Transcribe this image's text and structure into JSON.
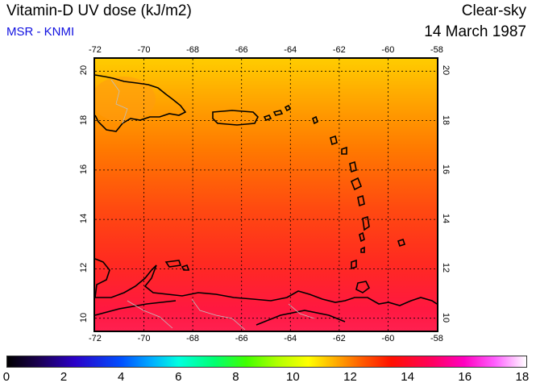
{
  "header": {
    "title": "Vitamin-D UV dose (kJ/m2)",
    "subtitle": "MSR - KNMI",
    "sky": "Clear-sky",
    "date": "14 March 1987"
  },
  "map": {
    "lon_ticks": [
      "-72",
      "-70",
      "-68",
      "-66",
      "-64",
      "-62",
      "-60",
      "-58"
    ],
    "lat_ticks": [
      "20",
      "18",
      "16",
      "14",
      "12",
      "10"
    ],
    "lon_range": [
      -72,
      -58
    ],
    "lat_range": [
      9.5,
      20.5
    ],
    "field_colors": {
      "north": "#ffcc00",
      "middle": "#ff6000",
      "south": "#ff2050"
    }
  },
  "colorbar": {
    "labels": [
      "0",
      "2",
      "4",
      "6",
      "8",
      "10",
      "12",
      "14",
      "16",
      "18"
    ],
    "range": [
      0,
      18
    ]
  }
}
